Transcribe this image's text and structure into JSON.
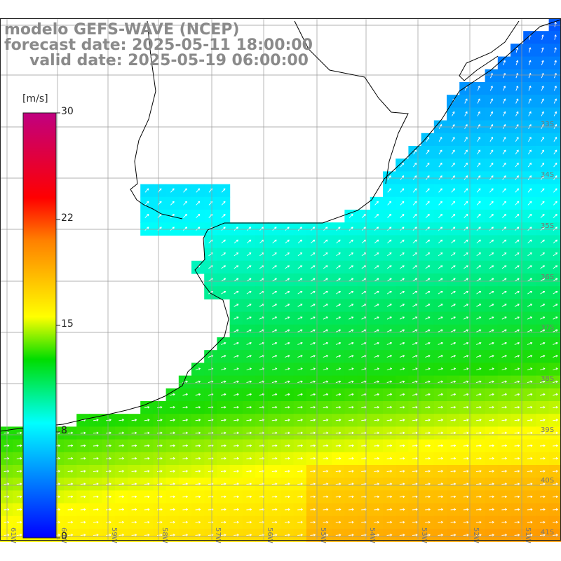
{
  "header": {
    "line1": "modelo GEFS-WAVE (NCEP)",
    "line2": "forecast date: 2025-05-11 18:00:00",
    "line3": "valid date: 2025-05-19 06:00:00"
  },
  "colorbar": {
    "unit": "[m/s]",
    "ticks": [
      "30",
      "22",
      "15",
      "8",
      "0"
    ],
    "tick_values": [
      30,
      22,
      15,
      8,
      0
    ],
    "range": [
      0,
      30
    ],
    "colors": [
      "#0000ff",
      "#00ffff",
      "#00dd00",
      "#ffff00",
      "#ff8000",
      "#ff0000",
      "#c00080"
    ]
  },
  "map": {
    "lat_labels": [
      "33S",
      "34S",
      "35S",
      "36S",
      "37S",
      "38S",
      "39S",
      "40S",
      "41S"
    ],
    "lon_labels": [
      "61W",
      "60W",
      "59W",
      "58W",
      "57W",
      "56W",
      "55W",
      "54W",
      "53W",
      "52W",
      "51W"
    ],
    "land_color": "#ffffff",
    "coast_color": "#000000",
    "grid_color": "#999999"
  }
}
